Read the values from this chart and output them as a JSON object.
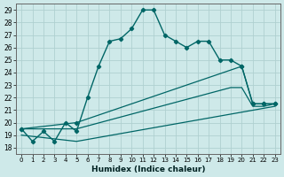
{
  "xlabel": "Humidex (Indice chaleur)",
  "bg_color": "#cee9e9",
  "grid_color": "#b0d0d0",
  "line_color": "#006666",
  "xlim": [
    -0.5,
    23.5
  ],
  "ylim": [
    17.5,
    29.5
  ],
  "xticks": [
    0,
    1,
    2,
    3,
    4,
    5,
    6,
    7,
    8,
    9,
    10,
    11,
    12,
    13,
    14,
    15,
    16,
    17,
    18,
    19,
    20,
    21,
    22,
    23
  ],
  "yticks": [
    18,
    19,
    20,
    21,
    22,
    23,
    24,
    25,
    26,
    27,
    28,
    29
  ],
  "line1_x": [
    0,
    1,
    2,
    3,
    4,
    5,
    6,
    7,
    8,
    9,
    10,
    11,
    12,
    13,
    14,
    15,
    16,
    17,
    18,
    19,
    20,
    21,
    22,
    23
  ],
  "line1_y": [
    19.5,
    18.5,
    19.3,
    18.5,
    20.0,
    19.3,
    22.0,
    24.5,
    26.5,
    26.7,
    27.5,
    29.0,
    29.0,
    27.0,
    26.5,
    26.0,
    26.5,
    26.5,
    25.0,
    25.0,
    24.5,
    21.5,
    21.5,
    21.5
  ],
  "line2_x": [
    0,
    5,
    20,
    21,
    22,
    23
  ],
  "line2_y": [
    19.5,
    20.0,
    24.5,
    21.5,
    21.5,
    21.5
  ],
  "line3_x": [
    0,
    5,
    19,
    20,
    21,
    22,
    23
  ],
  "line3_y": [
    19.5,
    19.5,
    22.8,
    22.8,
    21.3,
    21.3,
    21.5
  ],
  "line4_x": [
    0,
    5,
    23
  ],
  "line4_y": [
    19.0,
    18.5,
    21.3
  ]
}
